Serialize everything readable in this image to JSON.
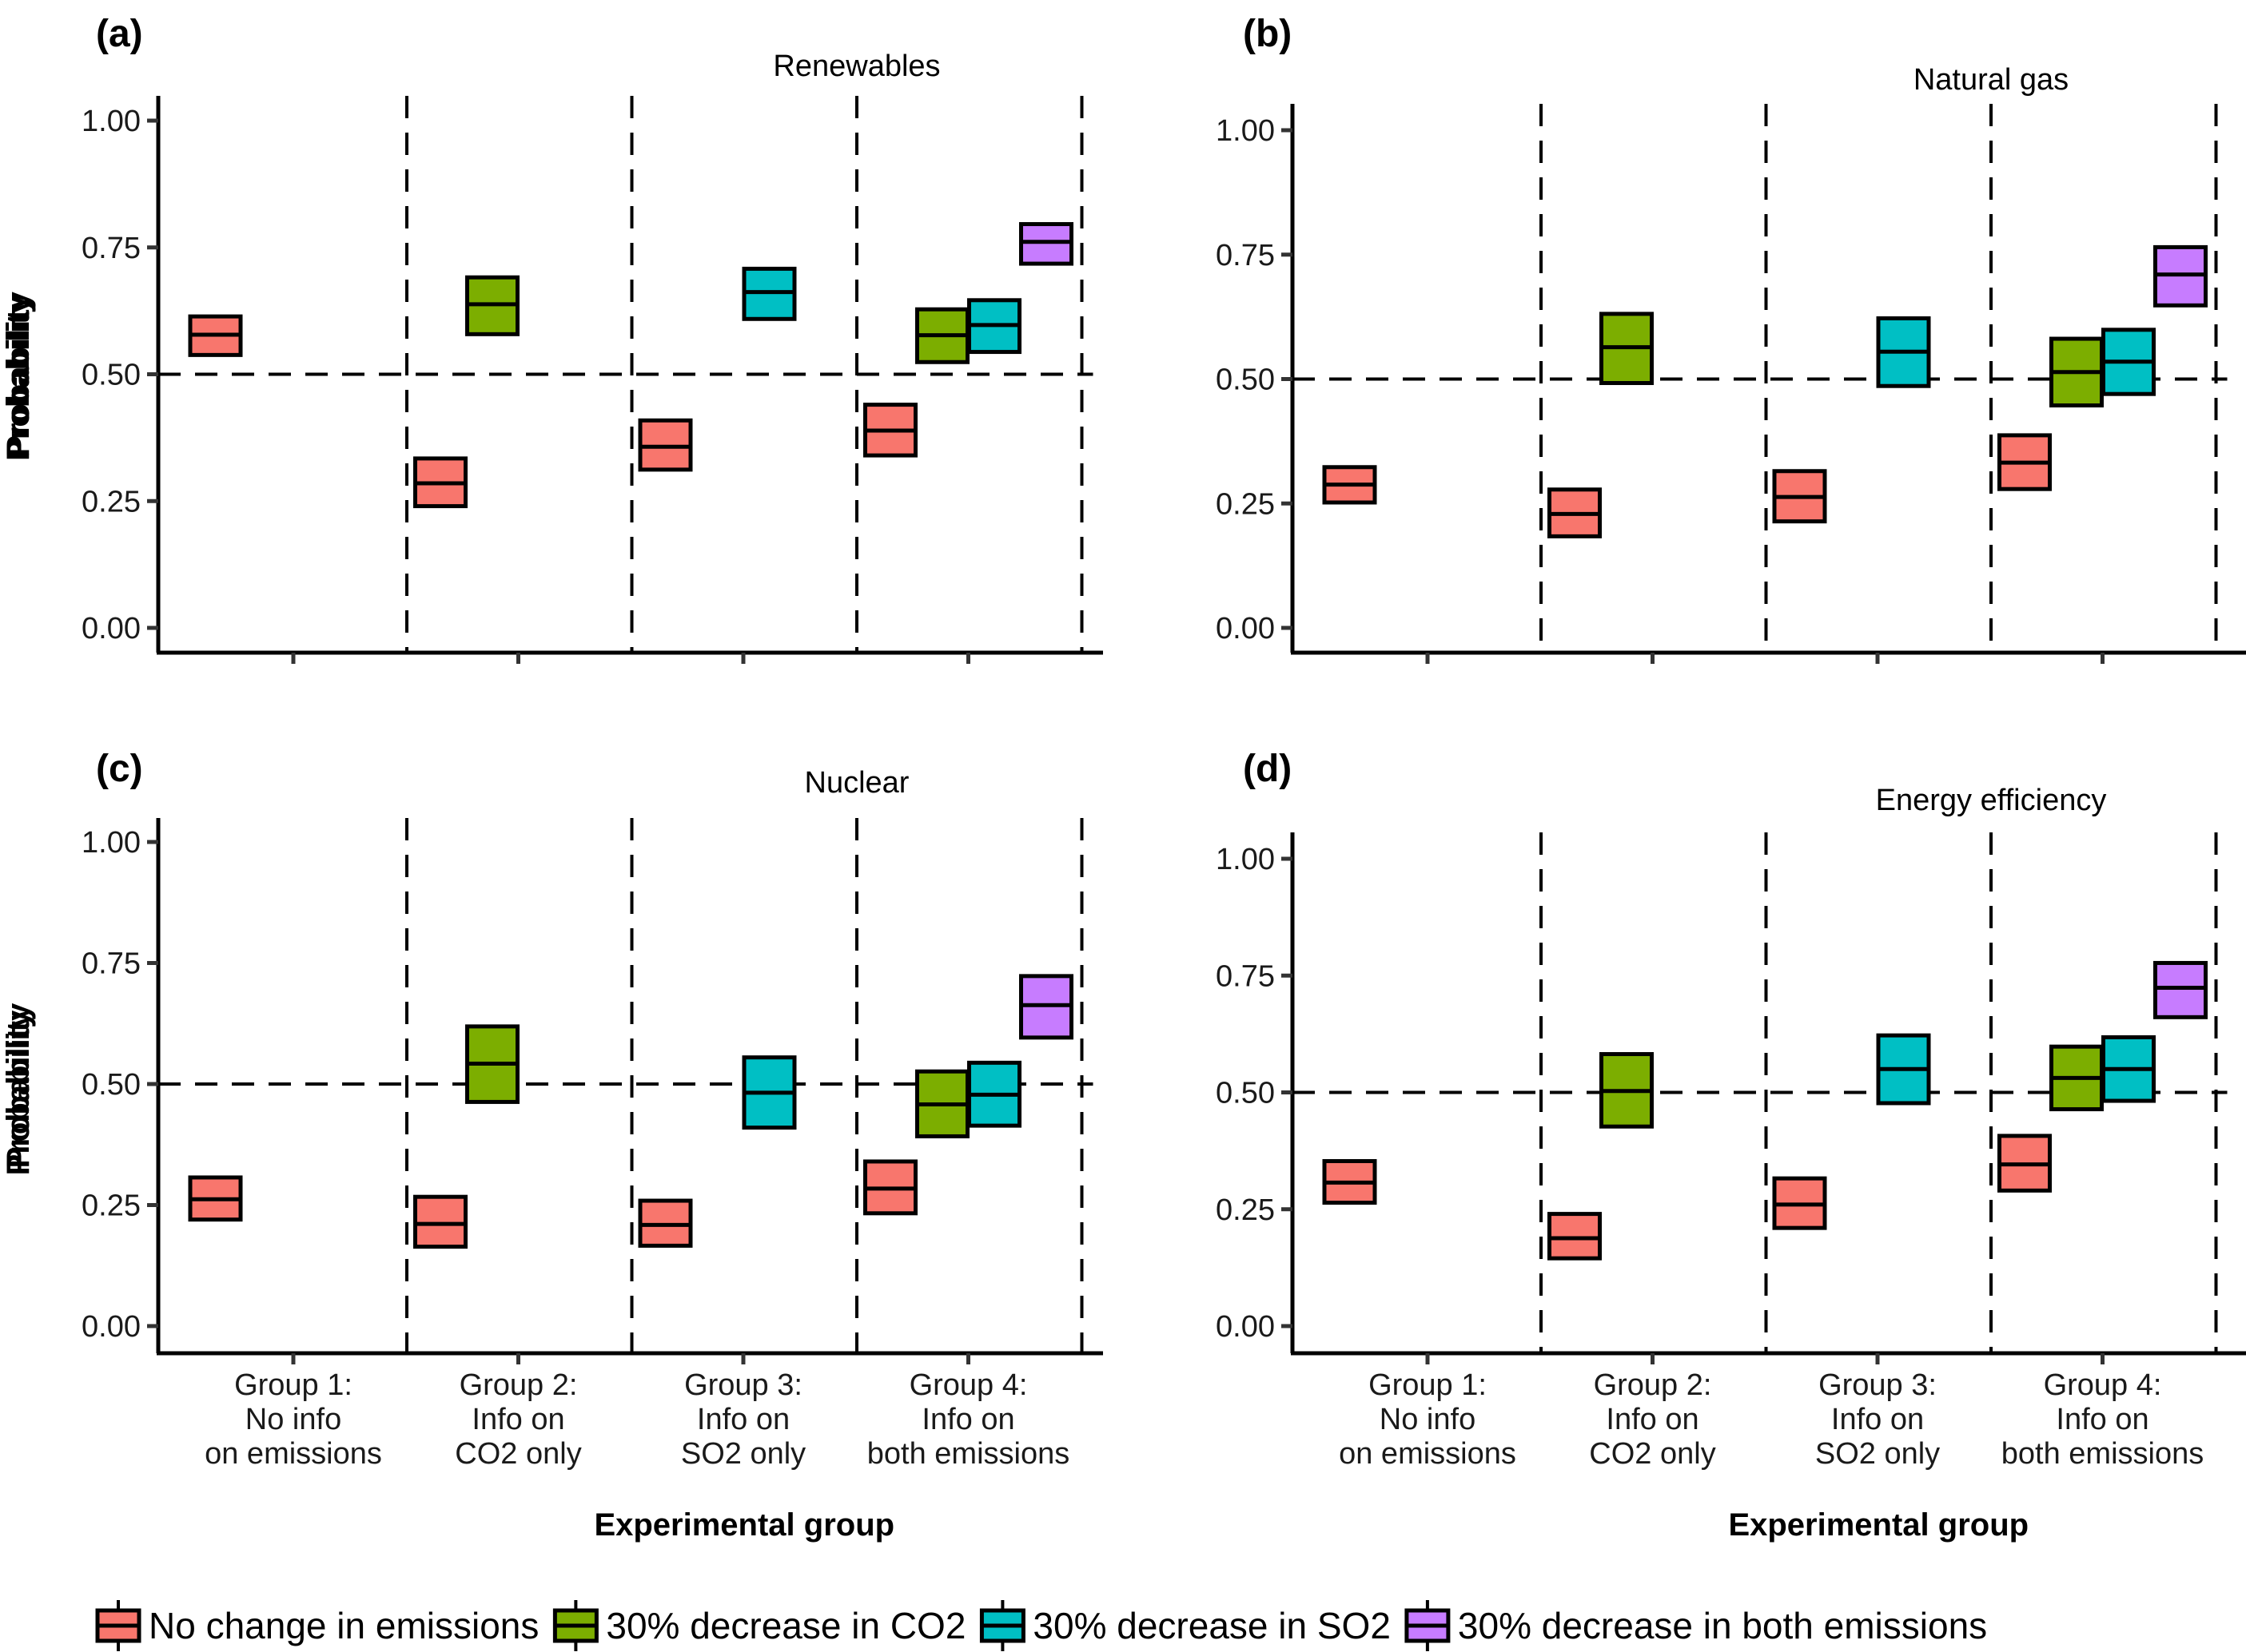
{
  "chart_data": {
    "type": "crossbar",
    "ylabel": "Probability",
    "xlabel": "Experimental group",
    "ylim": [
      0,
      1
    ],
    "yticks": [
      "0.00",
      "0.25",
      "0.50",
      "0.75",
      "1.00"
    ],
    "reference_line": 0.5,
    "categories": [
      [
        "Group 1:",
        "No info",
        "on emissions"
      ],
      [
        "Group 2:",
        "Info on",
        "CO2 only"
      ],
      [
        "Group 3:",
        "Info on",
        "SO2 only"
      ],
      [
        "Group 4:",
        "Info on",
        "both emissions"
      ]
    ],
    "legend": {
      "placement": "bottom",
      "items": [
        {
          "name": "No change in emissions",
          "color": "#F8766D"
        },
        {
          "name": "30% decrease in CO2",
          "color": "#7CAE00"
        },
        {
          "name": "30% decrease in SO2",
          "color": "#00BFC4"
        },
        {
          "name": "30% decrease in both emissions",
          "color": "#C77CFF"
        }
      ]
    },
    "panels": [
      {
        "letter": "(a)",
        "title": "Renewables",
        "points": [
          {
            "group": 1,
            "series": 0,
            "mid": 0.578,
            "low": 0.538,
            "high": 0.614
          },
          {
            "group": 2,
            "series": 0,
            "mid": 0.285,
            "low": 0.24,
            "high": 0.334
          },
          {
            "group": 2,
            "series": 1,
            "mid": 0.638,
            "low": 0.579,
            "high": 0.691
          },
          {
            "group": 3,
            "series": 0,
            "mid": 0.357,
            "low": 0.312,
            "high": 0.409
          },
          {
            "group": 3,
            "series": 2,
            "mid": 0.662,
            "low": 0.609,
            "high": 0.708
          },
          {
            "group": 4,
            "series": 0,
            "mid": 0.389,
            "low": 0.34,
            "high": 0.44
          },
          {
            "group": 4,
            "series": 1,
            "mid": 0.577,
            "low": 0.524,
            "high": 0.628
          },
          {
            "group": 4,
            "series": 2,
            "mid": 0.597,
            "low": 0.544,
            "high": 0.646
          },
          {
            "group": 4,
            "series": 3,
            "mid": 0.761,
            "low": 0.718,
            "high": 0.796
          }
        ]
      },
      {
        "letter": "(b)",
        "title": "Natural gas",
        "points": [
          {
            "group": 1,
            "series": 0,
            "mid": 0.288,
            "low": 0.252,
            "high": 0.323
          },
          {
            "group": 2,
            "series": 0,
            "mid": 0.229,
            "low": 0.184,
            "high": 0.278
          },
          {
            "group": 2,
            "series": 1,
            "mid": 0.564,
            "low": 0.492,
            "high": 0.631
          },
          {
            "group": 3,
            "series": 0,
            "mid": 0.263,
            "low": 0.214,
            "high": 0.315
          },
          {
            "group": 3,
            "series": 2,
            "mid": 0.555,
            "low": 0.486,
            "high": 0.622
          },
          {
            "group": 4,
            "series": 0,
            "mid": 0.332,
            "low": 0.279,
            "high": 0.387
          },
          {
            "group": 4,
            "series": 1,
            "mid": 0.514,
            "low": 0.447,
            "high": 0.581
          },
          {
            "group": 4,
            "series": 2,
            "mid": 0.535,
            "low": 0.47,
            "high": 0.599
          },
          {
            "group": 4,
            "series": 3,
            "mid": 0.71,
            "low": 0.648,
            "high": 0.765
          }
        ]
      },
      {
        "letter": "(c)",
        "title": "Nuclear",
        "points": [
          {
            "group": 1,
            "series": 0,
            "mid": 0.262,
            "low": 0.22,
            "high": 0.307
          },
          {
            "group": 2,
            "series": 0,
            "mid": 0.211,
            "low": 0.164,
            "high": 0.267
          },
          {
            "group": 2,
            "series": 1,
            "mid": 0.542,
            "low": 0.463,
            "high": 0.619
          },
          {
            "group": 3,
            "series": 0,
            "mid": 0.209,
            "low": 0.166,
            "high": 0.259
          },
          {
            "group": 3,
            "series": 2,
            "mid": 0.482,
            "low": 0.41,
            "high": 0.555
          },
          {
            "group": 4,
            "series": 0,
            "mid": 0.284,
            "low": 0.233,
            "high": 0.34
          },
          {
            "group": 4,
            "series": 1,
            "mid": 0.458,
            "low": 0.392,
            "high": 0.526
          },
          {
            "group": 4,
            "series": 2,
            "mid": 0.478,
            "low": 0.414,
            "high": 0.544
          },
          {
            "group": 4,
            "series": 3,
            "mid": 0.663,
            "low": 0.596,
            "high": 0.723
          }
        ]
      },
      {
        "letter": "(d)",
        "title": "Energy efficiency",
        "points": [
          {
            "group": 1,
            "series": 0,
            "mid": 0.307,
            "low": 0.264,
            "high": 0.353
          },
          {
            "group": 2,
            "series": 0,
            "mid": 0.188,
            "low": 0.145,
            "high": 0.24
          },
          {
            "group": 2,
            "series": 1,
            "mid": 0.503,
            "low": 0.427,
            "high": 0.582
          },
          {
            "group": 3,
            "series": 0,
            "mid": 0.26,
            "low": 0.21,
            "high": 0.316
          },
          {
            "group": 3,
            "series": 2,
            "mid": 0.55,
            "low": 0.477,
            "high": 0.622
          },
          {
            "group": 4,
            "series": 0,
            "mid": 0.346,
            "low": 0.29,
            "high": 0.407
          },
          {
            "group": 4,
            "series": 1,
            "mid": 0.531,
            "low": 0.464,
            "high": 0.598
          },
          {
            "group": 4,
            "series": 2,
            "mid": 0.55,
            "low": 0.482,
            "high": 0.618
          },
          {
            "group": 4,
            "series": 3,
            "mid": 0.724,
            "low": 0.661,
            "high": 0.777
          }
        ]
      }
    ]
  }
}
